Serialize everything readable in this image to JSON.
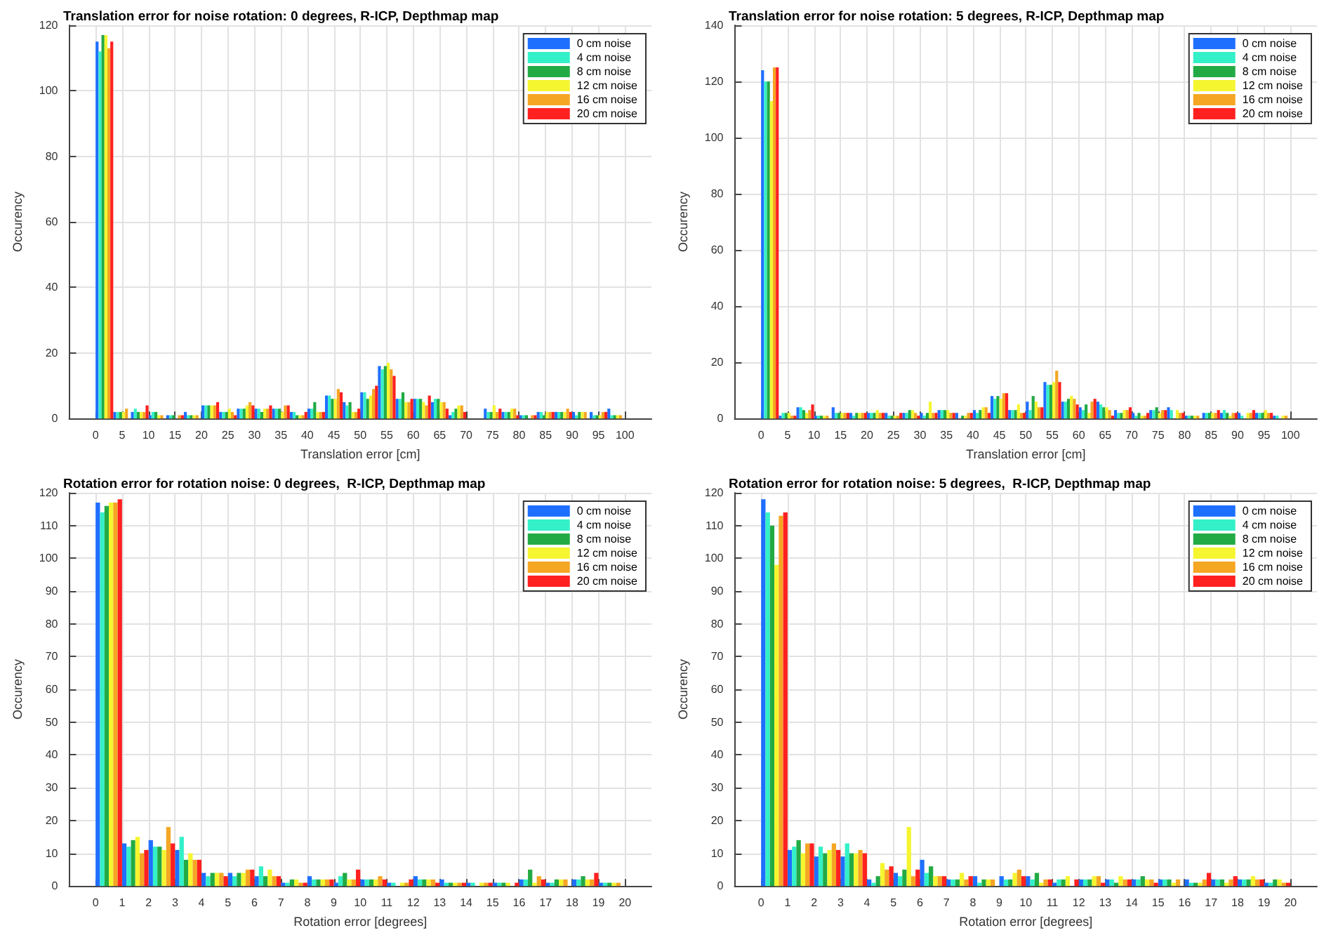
{
  "chart_data": [
    {
      "type": "histogram",
      "title": "Translation error for noise rotation: 0 degrees, R-ICP, Depthmap map",
      "xlabel": "Translation error [cm]",
      "ylabel": "Occurency",
      "legend": "top right",
      "grid": true,
      "bins": [
        0,
        3.33,
        6.67,
        10,
        13.33,
        16.67,
        20,
        23.33,
        26.67,
        30,
        33.33,
        36.67,
        40,
        43.33,
        46.67,
        50,
        53.33,
        56.67,
        60,
        63.33,
        66.67,
        70,
        73.33,
        76.67,
        80,
        83.33,
        86.67,
        90,
        93.33,
        96.67,
        100
      ],
      "xlim": [
        -5,
        105
      ],
      "xticks": [
        0,
        5,
        10,
        15,
        20,
        25,
        30,
        35,
        40,
        45,
        50,
        55,
        60,
        65,
        70,
        75,
        80,
        85,
        90,
        95,
        100
      ],
      "ylim": [
        0,
        120
      ],
      "yticks": [
        0,
        20,
        40,
        60,
        80,
        100,
        120
      ],
      "series": [
        {
          "name": "0 cm noise",
          "color": "#1f6fff",
          "values": [
            115,
            2,
            2,
            1,
            1,
            2,
            4,
            2,
            3,
            3,
            3,
            2,
            3,
            7,
            5,
            8,
            16,
            6,
            6,
            5,
            1,
            0,
            3,
            2,
            1,
            2,
            2,
            2,
            2,
            3
          ]
        },
        {
          "name": "4 cm noise",
          "color": "#33f0c8",
          "values": [
            112,
            2,
            3,
            2,
            1,
            1,
            4,
            2,
            3,
            3,
            3,
            2,
            3,
            7,
            4,
            8,
            15,
            6,
            6,
            6,
            2,
            0,
            2,
            2,
            1,
            2,
            2,
            1,
            1,
            1
          ]
        },
        {
          "name": "8 cm noise",
          "color": "#22aa44",
          "values": [
            117,
            2,
            2,
            2,
            1,
            1,
            4,
            2,
            3,
            2,
            3,
            1,
            5,
            6,
            5,
            6,
            16,
            8,
            6,
            6,
            3,
            0,
            2,
            2,
            1,
            1,
            2,
            2,
            1,
            1
          ]
        },
        {
          "name": "12 cm noise",
          "color": "#f5f530",
          "values": [
            117,
            2,
            2,
            1,
            0,
            1,
            4,
            3,
            4,
            3,
            2,
            1,
            2,
            6,
            2,
            7,
            17,
            5,
            5,
            5,
            4,
            0,
            4,
            3,
            0,
            2,
            2,
            2,
            1,
            1
          ]
        },
        {
          "name": "16 cm noise",
          "color": "#f5a623",
          "values": [
            113,
            3,
            2,
            1,
            1,
            1,
            4,
            2,
            5,
            3,
            4,
            1,
            2,
            9,
            2,
            9,
            15,
            5,
            4,
            5,
            4,
            0,
            2,
            3,
            1,
            2,
            3,
            2,
            2,
            1
          ]
        },
        {
          "name": "20 cm noise",
          "color": "#ff2020",
          "values": [
            115,
            0,
            4,
            0,
            1,
            0,
            5,
            1,
            4,
            4,
            4,
            2,
            2,
            8,
            3,
            10,
            13,
            6,
            7,
            3,
            2,
            0,
            3,
            1,
            1,
            2,
            2,
            0,
            2,
            0
          ]
        }
      ]
    },
    {
      "type": "histogram",
      "title": "Translation error for noise rotation: 5 degrees, R-ICP, Depthmap map",
      "xlabel": "Translation error [cm]",
      "ylabel": "Occurency",
      "legend": "top right",
      "grid": true,
      "bins": [
        0,
        3.33,
        6.67,
        10,
        13.33,
        16.67,
        20,
        23.33,
        26.67,
        30,
        33.33,
        36.67,
        40,
        43.33,
        46.67,
        50,
        53.33,
        56.67,
        60,
        63.33,
        66.67,
        70,
        73.33,
        76.67,
        80,
        83.33,
        86.67,
        90,
        93.33,
        96.67,
        100
      ],
      "xlim": [
        -5,
        105
      ],
      "xticks": [
        0,
        5,
        10,
        15,
        20,
        25,
        30,
        35,
        40,
        45,
        50,
        55,
        60,
        65,
        70,
        75,
        80,
        85,
        90,
        95,
        100
      ],
      "ylim": [
        0,
        140
      ],
      "yticks": [
        0,
        20,
        40,
        60,
        80,
        100,
        120,
        140
      ],
      "series": [
        {
          "name": "0 cm noise",
          "color": "#1f6fff",
          "values": [
            124,
            1,
            4,
            1,
            4,
            2,
            2,
            2,
            2,
            2,
            3,
            2,
            3,
            8,
            3,
            6,
            13,
            6,
            4,
            6,
            3,
            2,
            3,
            4,
            1,
            2,
            2,
            2,
            2,
            1
          ]
        },
        {
          "name": "4 cm noise",
          "color": "#33f0c8",
          "values": [
            120,
            2,
            4,
            1,
            2,
            1,
            2,
            1,
            2,
            1,
            3,
            0,
            2,
            7,
            3,
            3,
            12,
            6,
            3,
            5,
            2,
            1,
            3,
            3,
            1,
            2,
            3,
            1,
            2,
            1
          ]
        },
        {
          "name": "8 cm noise",
          "color": "#22aa44",
          "values": [
            120,
            2,
            3,
            1,
            2,
            2,
            2,
            1,
            3,
            2,
            3,
            1,
            3,
            8,
            3,
            8,
            12,
            7,
            5,
            4,
            2,
            2,
            4,
            0,
            1,
            2,
            2,
            0,
            2,
            0
          ]
        },
        {
          "name": "12 cm noise",
          "color": "#f5f530",
          "values": [
            113,
            2,
            2,
            1,
            2,
            2,
            3,
            1,
            3,
            6,
            3,
            1,
            4,
            7,
            5,
            6,
            13,
            8,
            2,
            4,
            3,
            1,
            2,
            3,
            1,
            2,
            1,
            2,
            3,
            1
          ]
        },
        {
          "name": "16 cm noise",
          "color": "#f5a623",
          "values": [
            125,
            1,
            3,
            1,
            2,
            2,
            2,
            1,
            2,
            2,
            2,
            2,
            4,
            9,
            2,
            4,
            17,
            7,
            6,
            3,
            3,
            1,
            3,
            2,
            1,
            2,
            2,
            2,
            2,
            1
          ]
        },
        {
          "name": "20 cm noise",
          "color": "#ff2020",
          "values": [
            125,
            1,
            5,
            0,
            2,
            2,
            2,
            2,
            1,
            2,
            2,
            2,
            2,
            9,
            2,
            4,
            13,
            5,
            7,
            1,
            4,
            2,
            3,
            2,
            0,
            3,
            2,
            3,
            2,
            0
          ]
        }
      ]
    },
    {
      "type": "histogram",
      "title": "Rotation error for rotation noise: 0 degrees,  R-ICP, Depthmap map",
      "xlabel": "Rotation error [degrees]",
      "ylabel": "Occurency",
      "legend": "top right",
      "grid": true,
      "bins": [
        0,
        1,
        2,
        3,
        4,
        5,
        6,
        7,
        8,
        9,
        10,
        11,
        12,
        13,
        14,
        15,
        16,
        17,
        18,
        19,
        20
      ],
      "xlim": [
        -1,
        21
      ],
      "xticks": [
        0,
        1,
        2,
        3,
        4,
        5,
        6,
        7,
        8,
        9,
        10,
        11,
        12,
        13,
        14,
        15,
        16,
        17,
        18,
        19,
        20
      ],
      "ylim": [
        0,
        120
      ],
      "yticks": [
        0,
        10,
        20,
        30,
        40,
        50,
        60,
        70,
        80,
        90,
        100,
        110,
        120
      ],
      "series": [
        {
          "name": "0 cm noise",
          "color": "#1f6fff",
          "values": [
            117,
            13,
            14,
            11,
            4,
            4,
            3,
            1,
            3,
            1,
            2,
            1,
            3,
            2,
            1,
            1,
            2,
            1,
            2,
            1
          ]
        },
        {
          "name": "4 cm noise",
          "color": "#33f0c8",
          "values": [
            114,
            12,
            12,
            15,
            3,
            3,
            6,
            1,
            2,
            3,
            2,
            1,
            2,
            1,
            1,
            1,
            2,
            1,
            2,
            1
          ]
        },
        {
          "name": "8 cm noise",
          "color": "#22aa44",
          "values": [
            116,
            14,
            12,
            8,
            4,
            4,
            3,
            2,
            2,
            4,
            2,
            0,
            2,
            1,
            0,
            1,
            5,
            2,
            3,
            1
          ]
        },
        {
          "name": "12 cm noise",
          "color": "#f5f530",
          "values": [
            117,
            15,
            11,
            10,
            4,
            4,
            5,
            2,
            2,
            2,
            2,
            1,
            2,
            1,
            1,
            1,
            1,
            2,
            2,
            1
          ]
        },
        {
          "name": "16 cm noise",
          "color": "#f5a623",
          "values": [
            117,
            10,
            18,
            8,
            4,
            5,
            3,
            1,
            2,
            2,
            3,
            1,
            2,
            1,
            1,
            0,
            3,
            2,
            2,
            1
          ]
        },
        {
          "name": "20 cm noise",
          "color": "#ff2020",
          "values": [
            118,
            11,
            13,
            8,
            3,
            5,
            3,
            1,
            2,
            5,
            2,
            2,
            1,
            1,
            1,
            1,
            2,
            0,
            4,
            0
          ]
        }
      ]
    },
    {
      "type": "histogram",
      "title": "Rotation error for rotation noise: 5 degrees,  R-ICP, Depthmap map",
      "xlabel": "Rotation error [degrees]",
      "ylabel": "Occurency",
      "legend": "top right",
      "grid": true,
      "bins": [
        0,
        1,
        2,
        3,
        4,
        5,
        6,
        7,
        8,
        9,
        10,
        11,
        12,
        13,
        14,
        15,
        16,
        17,
        18,
        19,
        20
      ],
      "xlim": [
        -1,
        21
      ],
      "xticks": [
        0,
        1,
        2,
        3,
        4,
        5,
        6,
        7,
        8,
        9,
        10,
        11,
        12,
        13,
        14,
        15,
        16,
        17,
        18,
        19,
        20
      ],
      "ylim": [
        0,
        120
      ],
      "yticks": [
        0,
        10,
        20,
        30,
        40,
        50,
        60,
        70,
        80,
        90,
        100,
        110,
        120
      ],
      "series": [
        {
          "name": "0 cm noise",
          "color": "#1f6fff",
          "values": [
            118,
            11,
            9,
            9,
            2,
            4,
            8,
            2,
            3,
            3,
            3,
            1,
            2,
            2,
            2,
            2,
            2,
            2,
            2,
            1
          ]
        },
        {
          "name": "4 cm noise",
          "color": "#33f0c8",
          "values": [
            114,
            12,
            12,
            13,
            1,
            3,
            4,
            2,
            1,
            2,
            2,
            2,
            2,
            2,
            2,
            2,
            1,
            2,
            2,
            1
          ]
        },
        {
          "name": "8 cm noise",
          "color": "#22aa44",
          "values": [
            110,
            14,
            10,
            10,
            3,
            5,
            6,
            2,
            2,
            2,
            4,
            2,
            2,
            1,
            3,
            2,
            1,
            2,
            2,
            2
          ]
        },
        {
          "name": "12 cm noise",
          "color": "#f5f530",
          "values": [
            98,
            10,
            11,
            10,
            7,
            18,
            3,
            4,
            2,
            4,
            1,
            3,
            3,
            3,
            2,
            1,
            1,
            1,
            3,
            2
          ]
        },
        {
          "name": "16 cm noise",
          "color": "#f5a623",
          "values": [
            113,
            13,
            13,
            11,
            5,
            3,
            3,
            2,
            2,
            5,
            2,
            0,
            3,
            2,
            2,
            2,
            2,
            2,
            2,
            1
          ]
        },
        {
          "name": "20 cm noise",
          "color": "#ff2020",
          "values": [
            114,
            13,
            11,
            10,
            6,
            5,
            3,
            3,
            0,
            3,
            2,
            2,
            1,
            2,
            1,
            0,
            4,
            3,
            2,
            1
          ]
        }
      ]
    }
  ]
}
